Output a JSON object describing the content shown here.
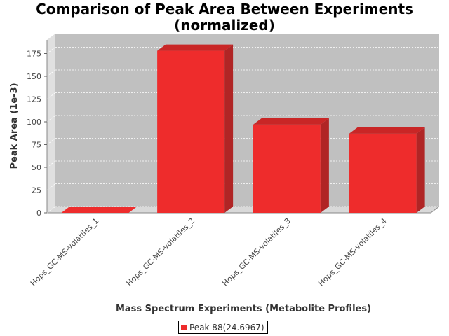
{
  "chart_data": {
    "type": "bar",
    "title_lines": [
      "Comparison of Peak Area Between Experiments",
      "(normalized)"
    ],
    "xlabel": "Mass Spectrum Experiments (Metabolite Profiles)",
    "ylabel": "Peak Area (1e-3)",
    "categories": [
      "Hops_GC-MS-volatiles_1",
      "Hops_GC-MS-volatiles_2",
      "Hops_GC-MS-volatiles_3",
      "Hops_GC-MS-volatiles_4"
    ],
    "series": [
      {
        "name": "Peak 88(24.6967)",
        "values": [
          0,
          178,
          97,
          87
        ]
      }
    ],
    "ylim": [
      0,
      190
    ],
    "yticks": [
      0,
      25,
      50,
      75,
      100,
      125,
      150,
      175
    ],
    "grid": true,
    "legend_position": "bottom",
    "colors": {
      "bar_front": "#ee2c2c",
      "bar_top": "#c92626",
      "bar_side": "#b02525",
      "plot_back": "#c0c0c0",
      "plot_floor": "#d9d9d9",
      "plot_wall": "#e0e0e0"
    }
  }
}
